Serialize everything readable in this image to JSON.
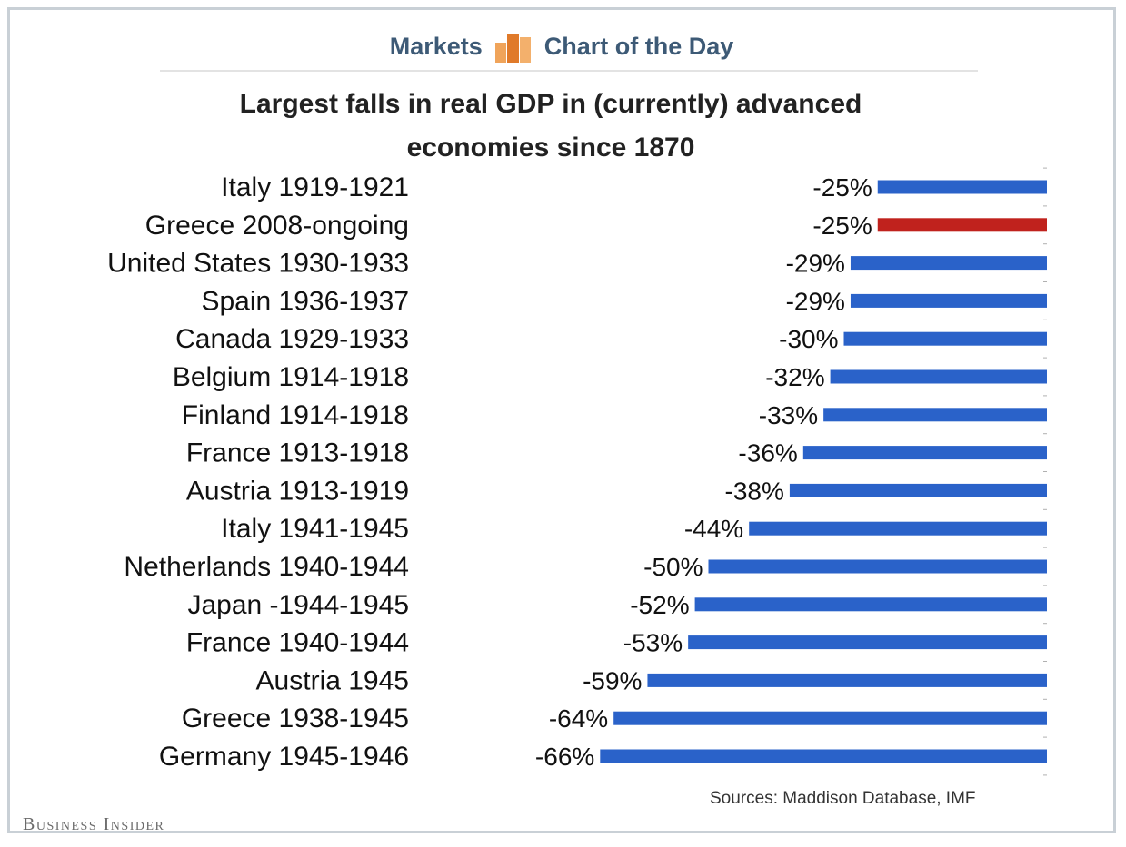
{
  "header": {
    "section": "Markets",
    "feature": "Chart of the Day"
  },
  "source": "Sources: Maddison Database, IMF",
  "brand": "Business Insider",
  "colors": {
    "default_bar": "#2a62c9",
    "highlight_bar": "#c0221d"
  },
  "chart_data": {
    "type": "bar",
    "orientation": "horizontal",
    "title": "Largest falls in real GDP in (currently) advanced economies since 1870",
    "title_lines": [
      "Largest falls in real GDP in (currently) advanced",
      "economies since 1870"
    ],
    "categories": [
      "Italy 1919-1921",
      "Greece 2008-ongoing",
      "United States 1930-1933",
      "Spain 1936-1937",
      "Canada 1929-1933",
      "Belgium 1914-1918",
      "Finland 1914-1918",
      "France 1913-1918",
      "Austria 1913-1919",
      "Italy 1941-1945",
      "Netherlands 1940-1944",
      "Japan -1944-1945",
      "France 1940-1944",
      "Austria 1945",
      "Greece 1938-1945",
      "Germany 1945-1946"
    ],
    "values": [
      -25,
      -25,
      -29,
      -29,
      -30,
      -32,
      -33,
      -36,
      -38,
      -44,
      -50,
      -52,
      -53,
      -59,
      -64,
      -66
    ],
    "value_labels": [
      "-25%",
      "-25%",
      "-29%",
      "-29%",
      "-30%",
      "-32%",
      "-33%",
      "-36%",
      "-38%",
      "-44%",
      "-50%",
      "-52%",
      "-53%",
      "-59%",
      "-64%",
      "-66%"
    ],
    "highlight": [
      "Greece 2008-ongoing"
    ],
    "unit": "%",
    "xlim": [
      -70,
      0
    ],
    "legend": "none",
    "grid": false
  }
}
